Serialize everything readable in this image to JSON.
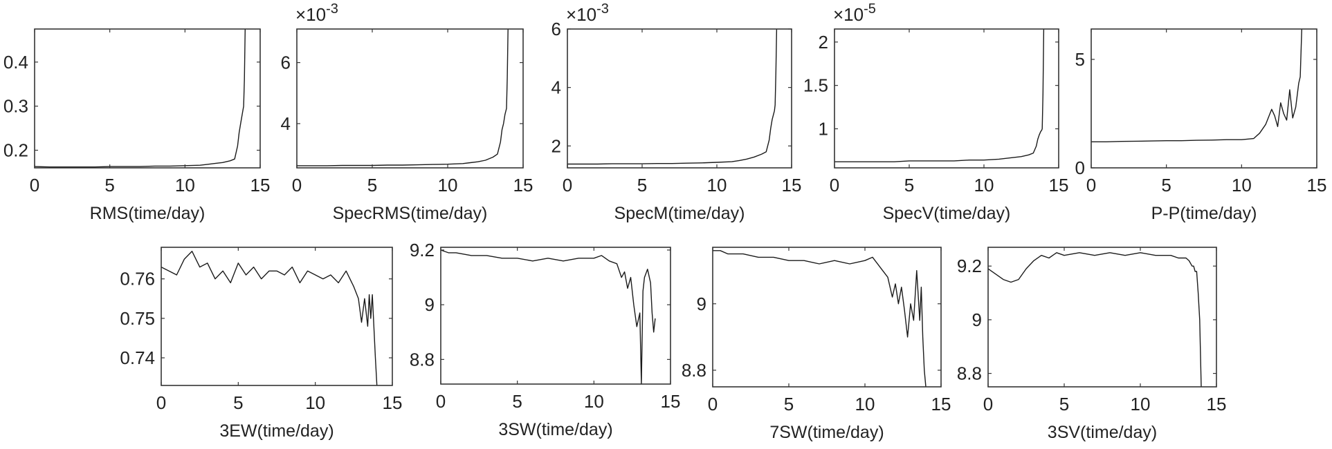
{
  "chart_data": [
    {
      "type": "line",
      "xlabel": "RMS(time/day)",
      "xlim": [
        0,
        15
      ],
      "ylim": [
        0.16,
        0.475
      ],
      "xticks": [
        0,
        5,
        10,
        15
      ],
      "yticks": [
        0.2,
        0.3,
        0.4
      ],
      "ytick_labels": [
        "0.2",
        "0.3",
        "0.4"
      ],
      "multiplier": "",
      "series": [
        {
          "x": [
            0,
            1,
            2,
            3,
            4,
            5,
            6,
            7,
            8,
            9,
            10,
            11,
            11.5,
            12,
            12.5,
            13,
            13.3,
            13.5,
            13.6,
            13.7,
            13.8,
            13.85,
            13.9,
            13.95,
            14
          ],
          "y": [
            0.163,
            0.162,
            0.162,
            0.162,
            0.162,
            0.163,
            0.163,
            0.163,
            0.164,
            0.164,
            0.165,
            0.166,
            0.168,
            0.17,
            0.172,
            0.176,
            0.18,
            0.21,
            0.24,
            0.26,
            0.28,
            0.29,
            0.3,
            0.36,
            0.475
          ]
        }
      ]
    },
    {
      "type": "line",
      "xlabel": "SpecRMS(time/day)",
      "xlim": [
        0,
        15
      ],
      "ylim": [
        2.55,
        7.1
      ],
      "xticks": [
        0,
        5,
        10,
        15
      ],
      "yticks": [
        4,
        6
      ],
      "ytick_labels": [
        "4",
        "6"
      ],
      "multiplier": "×10",
      "multiplier_exp": "-3",
      "series": [
        {
          "x": [
            0,
            1,
            2,
            3,
            4,
            5,
            6,
            7,
            8,
            9,
            10,
            11,
            11.5,
            12,
            12.5,
            13,
            13.3,
            13.5,
            13.6,
            13.7,
            13.8,
            13.85,
            13.9,
            13.95,
            14
          ],
          "y": [
            2.62,
            2.62,
            2.62,
            2.63,
            2.63,
            2.63,
            2.64,
            2.64,
            2.65,
            2.66,
            2.67,
            2.69,
            2.72,
            2.75,
            2.8,
            2.9,
            3.0,
            3.4,
            3.8,
            4.0,
            4.3,
            4.4,
            4.5,
            5.5,
            7.1
          ]
        }
      ]
    },
    {
      "type": "line",
      "xlabel": "SpecM(time/day)",
      "xlim": [
        0,
        15
      ],
      "ylim": [
        1.25,
        6.0
      ],
      "xticks": [
        0,
        5,
        10,
        15
      ],
      "yticks": [
        2,
        4,
        6
      ],
      "ytick_labels": [
        "2",
        "4",
        "6"
      ],
      "multiplier": "×10",
      "multiplier_exp": "-3",
      "series": [
        {
          "x": [
            0,
            1,
            2,
            3,
            4,
            5,
            6,
            7,
            8,
            9,
            10,
            11,
            11.5,
            12,
            12.5,
            13,
            13.3,
            13.5,
            13.6,
            13.7,
            13.8,
            13.85,
            13.9,
            13.95,
            14
          ],
          "y": [
            1.38,
            1.38,
            1.38,
            1.39,
            1.39,
            1.39,
            1.4,
            1.4,
            1.41,
            1.42,
            1.44,
            1.46,
            1.5,
            1.55,
            1.62,
            1.72,
            1.8,
            2.2,
            2.6,
            2.9,
            3.1,
            3.2,
            3.4,
            4.5,
            6.0
          ]
        }
      ]
    },
    {
      "type": "line",
      "xlabel": "SpecV(time/day)",
      "xlim": [
        0,
        15
      ],
      "ylim": [
        0.55,
        2.15
      ],
      "xticks": [
        0,
        5,
        10,
        15
      ],
      "yticks": [
        1,
        1.5,
        2
      ],
      "ytick_labels": [
        "1",
        "1.5",
        "2"
      ],
      "multiplier": "×10",
      "multiplier_exp": "-5",
      "series": [
        {
          "x": [
            0,
            1,
            2,
            3,
            4,
            5,
            6,
            7,
            8,
            9,
            10,
            11,
            11.5,
            12,
            12.5,
            13,
            13.3,
            13.5,
            13.6,
            13.7,
            13.8,
            13.85,
            13.9,
            13.95,
            14
          ],
          "y": [
            0.62,
            0.62,
            0.62,
            0.62,
            0.62,
            0.63,
            0.63,
            0.63,
            0.63,
            0.64,
            0.64,
            0.65,
            0.66,
            0.67,
            0.68,
            0.7,
            0.72,
            0.8,
            0.88,
            0.93,
            0.97,
            0.98,
            1.0,
            1.4,
            2.15
          ]
        }
      ]
    },
    {
      "type": "line",
      "xlabel": "P-P(time/day)",
      "xlim": [
        0,
        15
      ],
      "ylim": [
        0,
        6.4
      ],
      "xticks": [
        0,
        5,
        10,
        15
      ],
      "yticks": [
        0,
        5
      ],
      "ytick_labels": [
        "0",
        "5"
      ],
      "multiplier": "",
      "series": [
        {
          "x": [
            0,
            1,
            2,
            3,
            4,
            5,
            6,
            7,
            8,
            9,
            10,
            10.8,
            11.2,
            11.6,
            12,
            12.2,
            12.4,
            12.6,
            12.8,
            13,
            13.2,
            13.4,
            13.6,
            13.8,
            13.9,
            14
          ],
          "y": [
            1.2,
            1.2,
            1.22,
            1.23,
            1.24,
            1.25,
            1.25,
            1.27,
            1.28,
            1.3,
            1.3,
            1.35,
            1.6,
            2.0,
            2.7,
            2.4,
            1.9,
            3.0,
            2.5,
            2.2,
            3.6,
            2.3,
            2.8,
            3.9,
            4.2,
            6.4
          ]
        }
      ]
    },
    {
      "type": "line",
      "xlabel": "3EW(time/day)",
      "xlim": [
        0,
        15
      ],
      "ylim": [
        0.733,
        0.768
      ],
      "xticks": [
        0,
        5,
        10,
        15
      ],
      "yticks": [
        0.74,
        0.75,
        0.76
      ],
      "ytick_labels": [
        "0.74",
        "0.75",
        "0.76"
      ],
      "multiplier": "",
      "series": [
        {
          "x": [
            0,
            0.5,
            1,
            1.5,
            2,
            2.5,
            3,
            3.5,
            4,
            4.5,
            5,
            5.5,
            6,
            6.5,
            7,
            7.5,
            8,
            8.5,
            9,
            9.5,
            10,
            10.5,
            11,
            11.5,
            12,
            12.5,
            12.8,
            13,
            13.2,
            13.4,
            13.5,
            13.6,
            13.7,
            13.8,
            13.9,
            14
          ],
          "y": [
            0.763,
            0.762,
            0.761,
            0.765,
            0.767,
            0.763,
            0.764,
            0.76,
            0.762,
            0.759,
            0.764,
            0.761,
            0.763,
            0.76,
            0.762,
            0.762,
            0.761,
            0.763,
            0.759,
            0.762,
            0.761,
            0.76,
            0.761,
            0.759,
            0.762,
            0.758,
            0.755,
            0.749,
            0.755,
            0.748,
            0.756,
            0.75,
            0.756,
            0.748,
            0.74,
            0.733
          ]
        }
      ]
    },
    {
      "type": "line",
      "xlabel": "3SW(time/day)",
      "xlim": [
        0,
        15
      ],
      "ylim": [
        8.71,
        9.21
      ],
      "xticks": [
        0,
        5,
        10,
        15
      ],
      "yticks": [
        8.8,
        9,
        9.2
      ],
      "ytick_labels": [
        "8.8",
        "9",
        "9.2"
      ],
      "multiplier": "",
      "series": [
        {
          "x": [
            0,
            0.5,
            1,
            2,
            3,
            4,
            5,
            6,
            7,
            8,
            9,
            10,
            10.5,
            11,
            11.5,
            11.8,
            12,
            12.2,
            12.4,
            12.6,
            12.8,
            13,
            13.1,
            13.2,
            13.3,
            13.5,
            13.7,
            13.8,
            13.9,
            14
          ],
          "y": [
            9.2,
            9.19,
            9.19,
            9.18,
            9.18,
            9.17,
            9.17,
            9.16,
            9.17,
            9.16,
            9.17,
            9.17,
            9.18,
            9.16,
            9.15,
            9.1,
            9.12,
            9.06,
            9.1,
            9.0,
            8.92,
            8.97,
            8.71,
            9.05,
            9.1,
            9.13,
            9.08,
            8.97,
            8.9,
            8.95
          ]
        }
      ]
    },
    {
      "type": "line",
      "xlabel": "7SW(time/day)",
      "xlim": [
        0,
        15
      ],
      "ylim": [
        8.75,
        9.17
      ],
      "xticks": [
        0,
        5,
        10,
        15
      ],
      "yticks": [
        8.8,
        9
      ],
      "ytick_labels": [
        "8.8",
        "9"
      ],
      "multiplier": "",
      "series": [
        {
          "x": [
            0,
            0.5,
            1,
            2,
            3,
            4,
            5,
            6,
            7,
            8,
            9,
            10,
            10.5,
            11,
            11.5,
            11.8,
            12,
            12.2,
            12.4,
            12.6,
            12.8,
            13,
            13.2,
            13.4,
            13.6,
            13.7,
            13.8,
            13.9,
            14
          ],
          "y": [
            9.16,
            9.16,
            9.15,
            9.15,
            9.14,
            9.14,
            9.13,
            9.13,
            9.12,
            9.13,
            9.12,
            9.13,
            9.14,
            9.11,
            9.08,
            9.02,
            9.06,
            9.0,
            9.05,
            8.98,
            8.9,
            9.0,
            8.95,
            9.1,
            8.95,
            9.05,
            8.9,
            8.8,
            8.75
          ]
        }
      ]
    },
    {
      "type": "line",
      "xlabel": "3SV(time/day)",
      "xlim": [
        0,
        15
      ],
      "ylim": [
        8.75,
        9.27
      ],
      "xticks": [
        0,
        5,
        10,
        15
      ],
      "yticks": [
        8.8,
        9,
        9.2
      ],
      "ytick_labels": [
        "8.8",
        "9",
        "9.2"
      ],
      "multiplier": "",
      "series": [
        {
          "x": [
            0,
            0.5,
            1,
            1.5,
            2,
            2.5,
            3,
            3.5,
            4,
            4.5,
            5,
            6,
            7,
            8,
            9,
            10,
            11,
            12,
            12.5,
            13,
            13.2,
            13.4,
            13.5,
            13.6,
            13.7,
            13.8,
            13.9,
            14
          ],
          "y": [
            9.19,
            9.17,
            9.15,
            9.14,
            9.15,
            9.19,
            9.22,
            9.24,
            9.23,
            9.25,
            9.24,
            9.25,
            9.24,
            9.25,
            9.24,
            9.25,
            9.24,
            9.24,
            9.23,
            9.23,
            9.22,
            9.2,
            9.2,
            9.18,
            9.18,
            9.1,
            9.0,
            8.75
          ]
        }
      ]
    }
  ]
}
